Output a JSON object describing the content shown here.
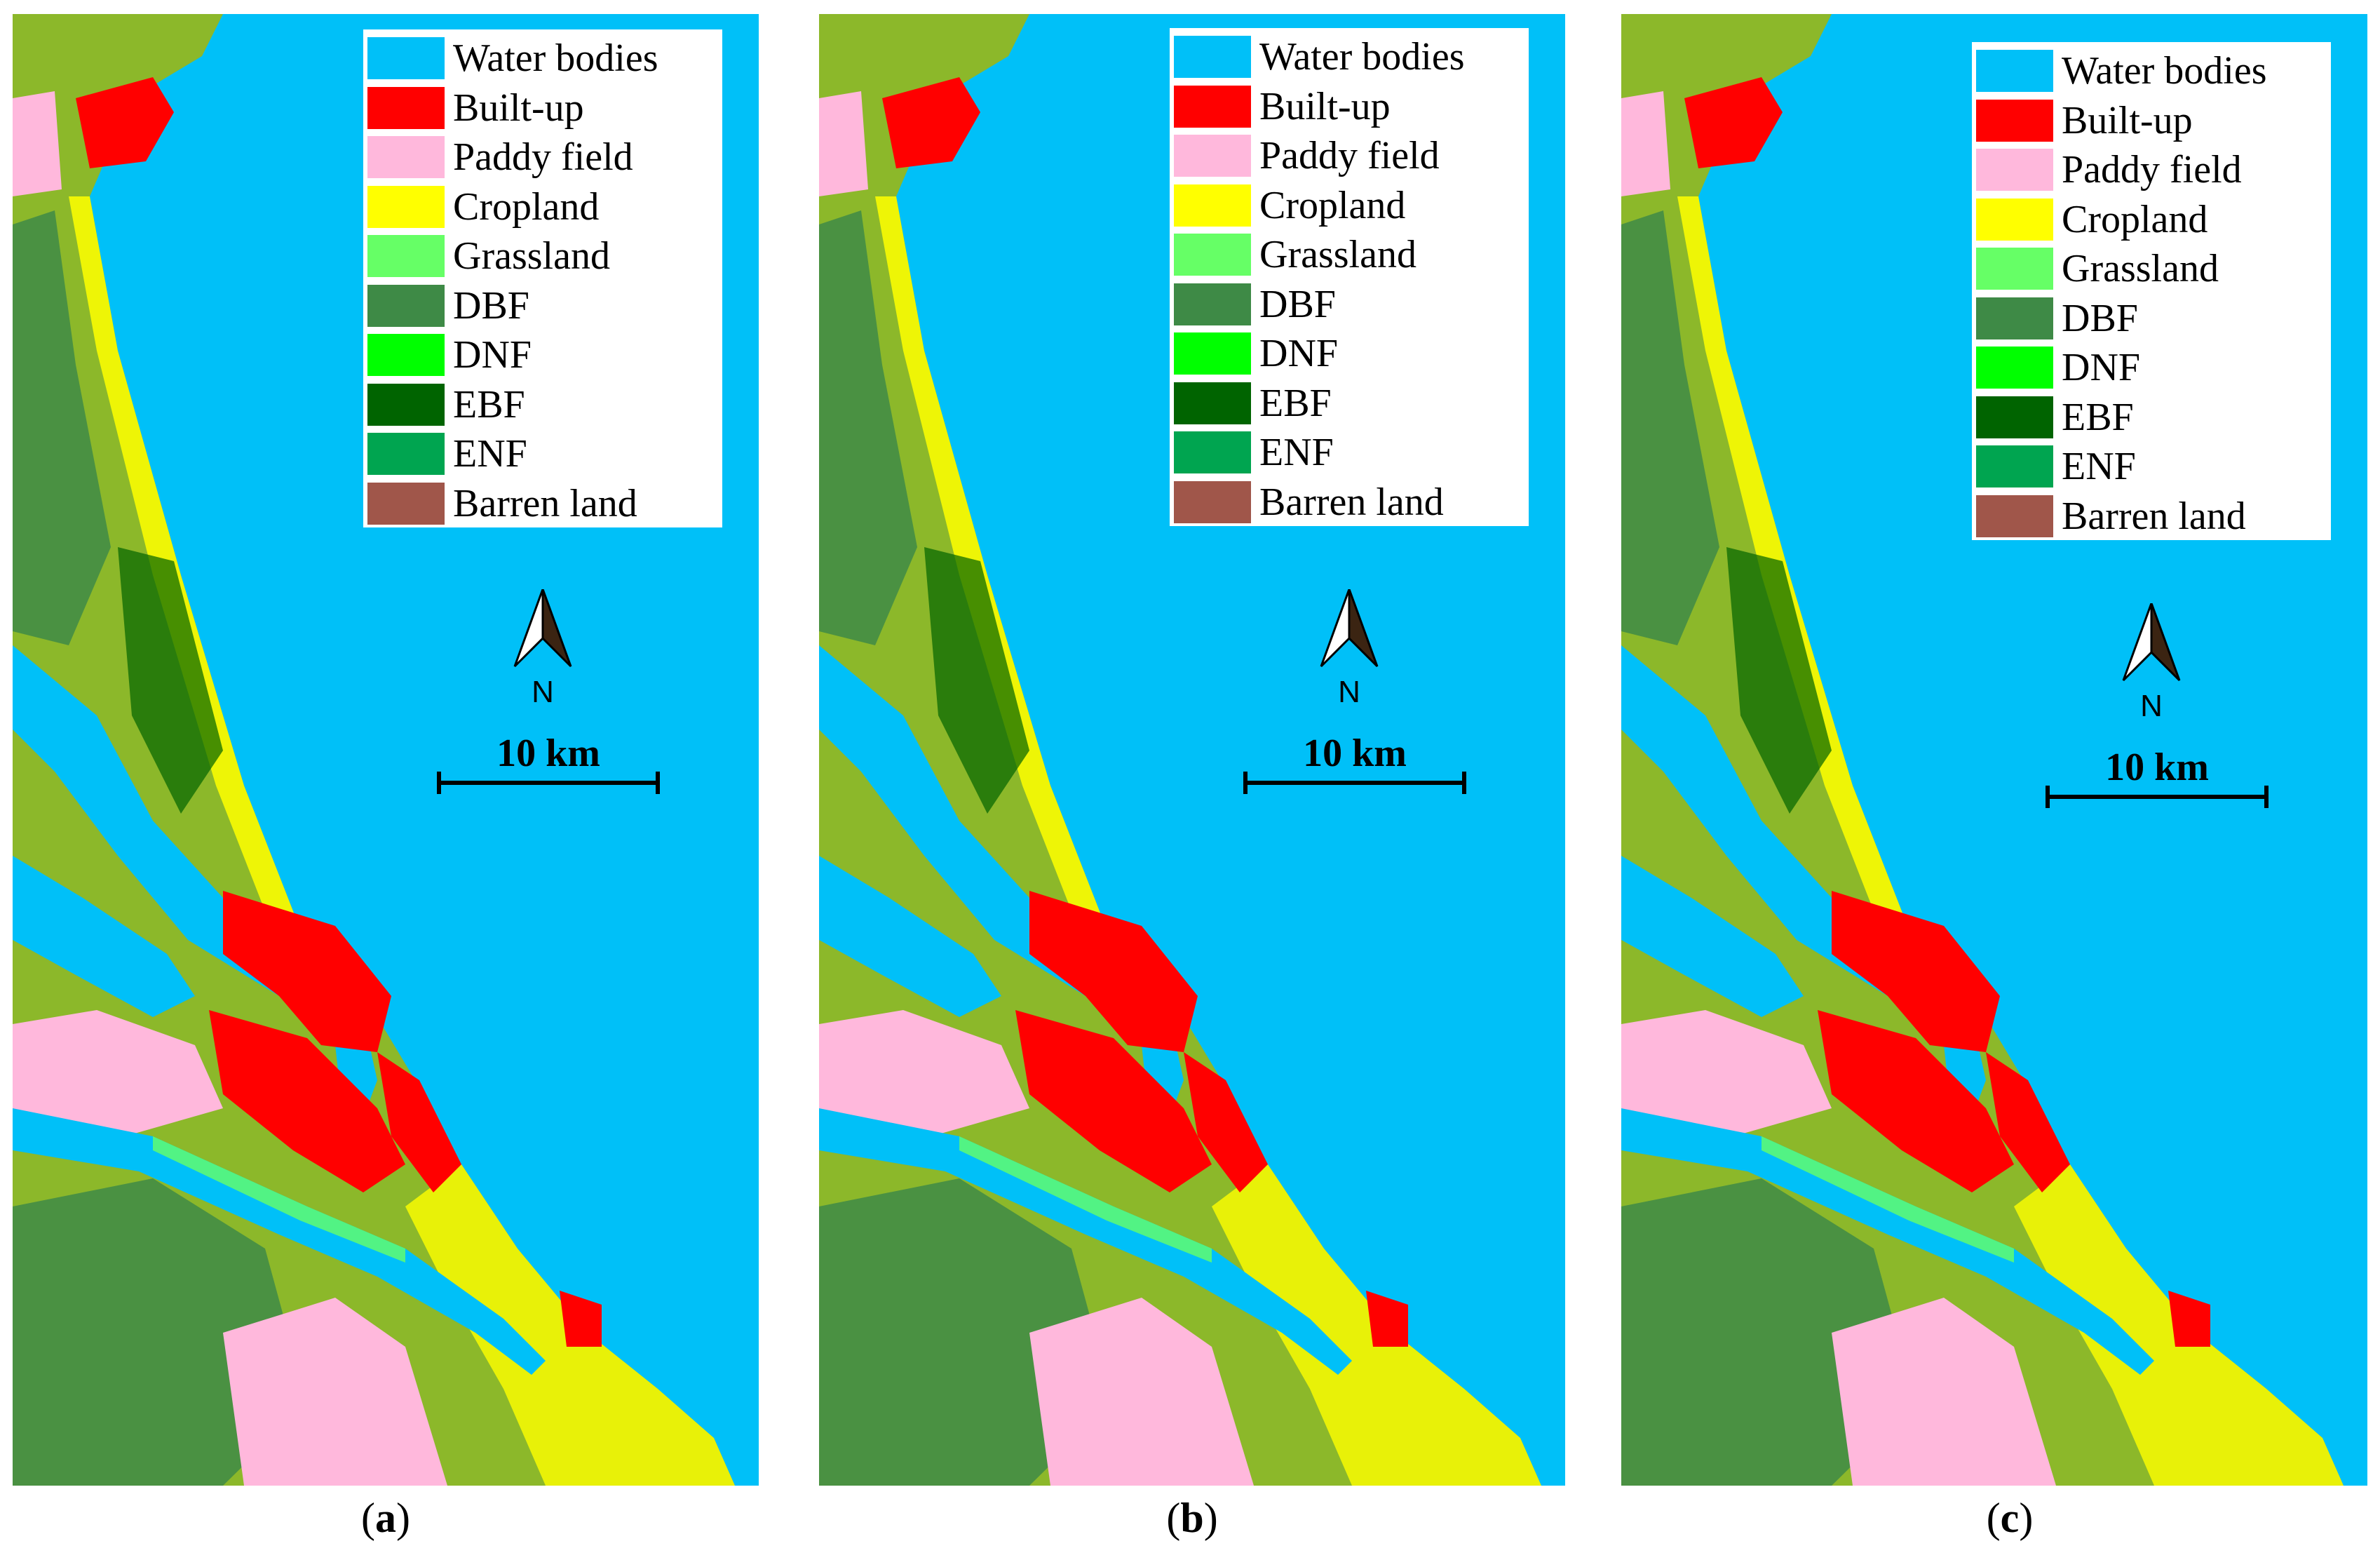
{
  "figure": {
    "panels": [
      {
        "id": "a",
        "caption_open": "(",
        "caption_letter": "a",
        "caption_close": ")"
      },
      {
        "id": "b",
        "caption_open": "(",
        "caption_letter": "b",
        "caption_close": ")"
      },
      {
        "id": "c",
        "caption_open": "(",
        "caption_letter": "c",
        "caption_close": ")"
      }
    ]
  },
  "legend": {
    "items": [
      {
        "label": "Water bodies",
        "color": "#00C0F8"
      },
      {
        "label": "Built-up",
        "color": "#FF0000"
      },
      {
        "label": "Paddy field",
        "color": "#FFB8DC"
      },
      {
        "label": "Cropland",
        "color": "#FFFF00"
      },
      {
        "label": "Grassland",
        "color": "#66FF66"
      },
      {
        "label": "DBF",
        "color": "#3E8A46"
      },
      {
        "label": "DNF",
        "color": "#00FF00"
      },
      {
        "label": "EBF",
        "color": "#006400"
      },
      {
        "label": "ENF",
        "color": "#00A550"
      },
      {
        "label": "Barren land",
        "color": "#A0564A"
      }
    ]
  },
  "north_arrow": {
    "label": "N"
  },
  "scale_bar": {
    "label": "10 km"
  },
  "colors": {
    "water": "#00C0F8",
    "built_up": "#FF0000",
    "paddy": "#FFB8DC",
    "cropland": "#FFFF00",
    "grassland": "#66FF66",
    "dbf": "#3E8A46",
    "ebf": "#006400",
    "enf": "#00A550"
  }
}
